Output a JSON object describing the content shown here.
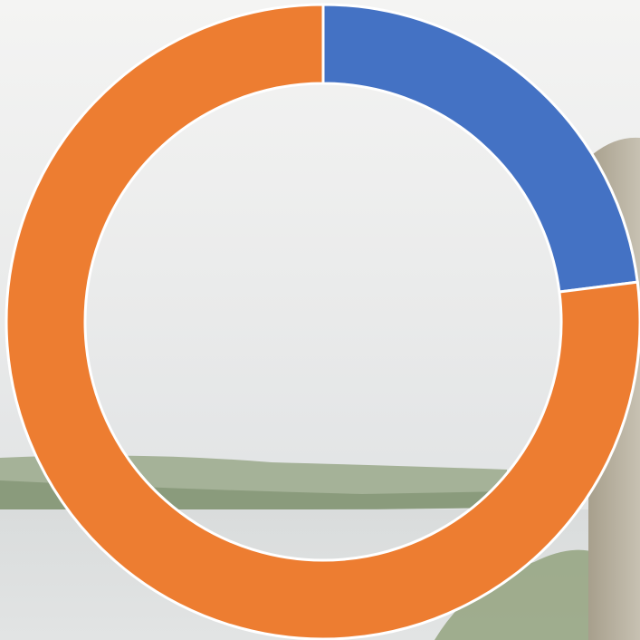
{
  "chart_data": {
    "type": "donut",
    "values": [
      23,
      77
    ],
    "colors": [
      "#4472c4",
      "#ed7d31"
    ]
  }
}
